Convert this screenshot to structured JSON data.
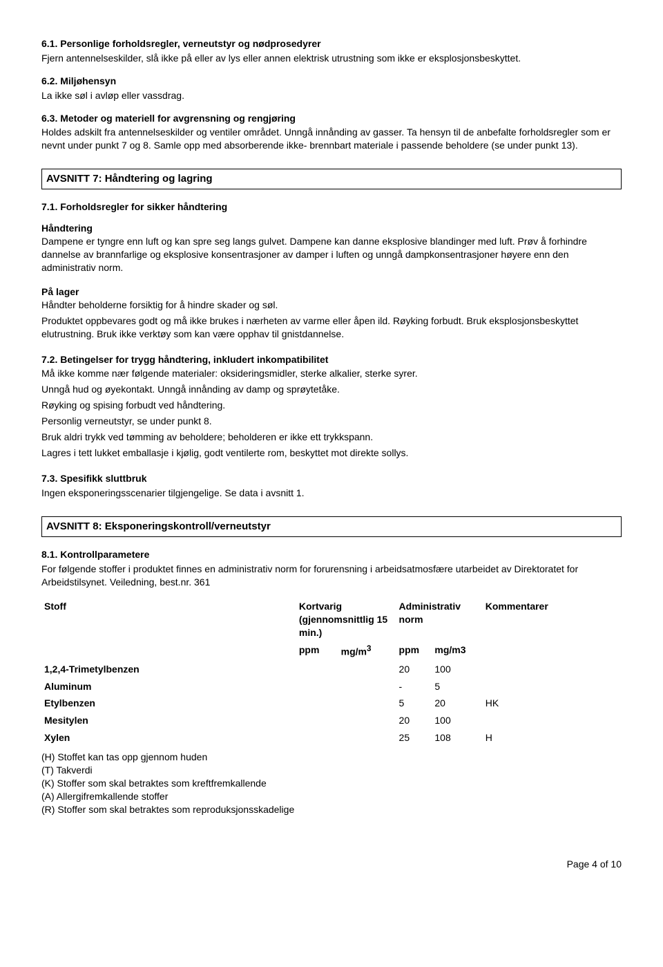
{
  "s6_1": {
    "title": "6.1. Personlige forholdsregler, verneutstyr og nødprosedyrer",
    "body": "Fjern antennelseskilder, slå ikke på eller av lys eller annen elektrisk utrustning som ikke er eksplosjonsbeskyttet."
  },
  "s6_2": {
    "title": "6.2. Miljøhensyn",
    "body": "La ikke søl i avløp eller vassdrag."
  },
  "s6_3": {
    "title": "6.3. Metoder og materiell for avgrensning og rengjøring",
    "body": "Holdes adskilt fra antennelseskilder og ventiler området. Unngå innånding av gasser. Ta hensyn til de anbefalte forholdsregler som er nevnt under punkt 7 og 8. Samle opp med absorberende ikke- brennbart materiale i passende beholdere (se under punkt 13)."
  },
  "s7": {
    "header": "AVSNITT 7: Håndtering og lagring",
    "s7_1": {
      "title": "7.1. Forholdsregler for sikker håndtering",
      "h_handling": "Håndtering",
      "handling_body": "Dampene er tyngre enn luft og kan spre seg langs gulvet. Dampene kan danne eksplosive blandinger med luft. Prøv å forhindre dannelse av brannfarlige og eksplosive konsentrasjoner av damper i luften og unngå dampkonsentrasjoner høyere enn den administrativ norm.",
      "h_storage": "På lager",
      "storage_p1": "Håndter beholderne forsiktig for å hindre skader og søl.",
      "storage_p2": "Produktet oppbevares godt og må ikke brukes i nærheten av varme eller åpen ild. Røyking forbudt. Bruk eksplosjonsbeskyttet elutrustning. Bruk ikke verktøy som kan være opphav til gnistdannelse."
    },
    "s7_2": {
      "title": "7.2. Betingelser for trygg håndtering, inkludert inkompatibilitet",
      "p1": "Må ikke komme nær følgende materialer: oksideringsmidler, sterke alkalier, sterke syrer.",
      "p2": "Unngå hud og øyekontakt. Unngå innånding av damp og sprøytetåke.",
      "p3": "Røyking og spising forbudt ved håndtering.",
      "p4": "Personlig verneutstyr, se under punkt 8.",
      "p5": "Bruk aldri trykk ved tømming av beholdere; beholderen er ikke ett trykkspann.",
      "p6": "Lagres i tett lukket emballasje i kjølig, godt ventilerte rom, beskyttet mot direkte sollys."
    },
    "s7_3": {
      "title": "7.3. Spesifikk sluttbruk",
      "body": "Ingen eksponeringsscenarier tilgjengelige. Se data i avsnitt 1."
    }
  },
  "s8": {
    "header": "AVSNITT 8: Eksponeringskontroll/verneutstyr",
    "s8_1": {
      "title": "8.1. Kontrollparametere",
      "body": "For følgende stoffer i produktet finnes en administrativ norm for forurensning i arbeidsatmosfære utarbeidet av Direktoratet for Arbeidstilsynet. Veiledning, best.nr. 361"
    },
    "table": {
      "head": {
        "stoff": "Stoff",
        "kort": "Kortvarig (gjennomsnittlig 15 min.)",
        "adm": "Administrativ norm",
        "kom": "Kommentarer",
        "ppm": "ppm",
        "mgm3_sup": "mg/m",
        "mgm3": "mg/m3"
      },
      "rows": [
        {
          "name": "1,2,4-Trimetylbenzen",
          "k1": "",
          "k2": "",
          "a1": "20",
          "a2": "100",
          "kom": ""
        },
        {
          "name": "Aluminum",
          "k1": "",
          "k2": "",
          "a1": "-",
          "a2": "5",
          "kom": ""
        },
        {
          "name": "Etylbenzen",
          "k1": "",
          "k2": "",
          "a1": "5",
          "a2": "20",
          "kom": "HK"
        },
        {
          "name": "Mesitylen",
          "k1": "",
          "k2": "",
          "a1": "20",
          "a2": "100",
          "kom": ""
        },
        {
          "name": "Xylen",
          "k1": "",
          "k2": "",
          "a1": "25",
          "a2": "108",
          "kom": "H"
        }
      ]
    },
    "legend": {
      "h": "(H) Stoffet kan tas opp gjennom huden",
      "t": "(T) Takverdi",
      "k": "(K) Stoffer som skal betraktes som kreftfremkallende",
      "a": "(A) Allergifremkallende stoffer",
      "r": "(R) Stoffer som skal betraktes som reproduksjonsskadelige"
    }
  },
  "footer": "Page 4 of 10"
}
